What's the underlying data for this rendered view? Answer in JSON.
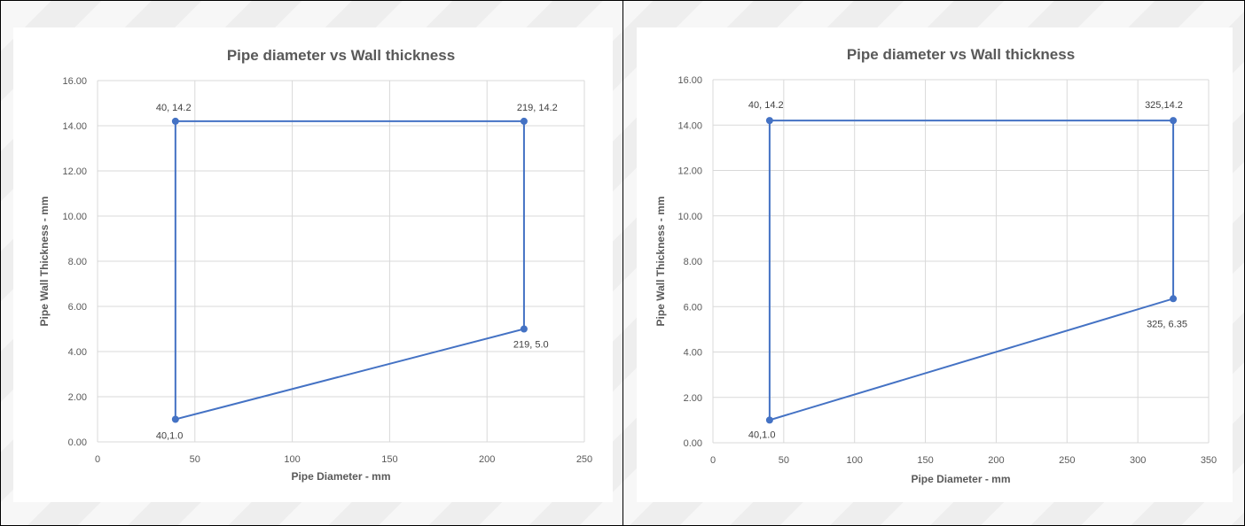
{
  "chart_data": [
    {
      "type": "scatter",
      "title": "Pipe diameter vs Wall thickness",
      "xlabel": "Pipe Diameter - mm",
      "ylabel": "Pipe Wall Thickness - mm",
      "xlim": [
        0,
        250
      ],
      "ylim": [
        0,
        16
      ],
      "x_ticks": [
        "0",
        "50",
        "100",
        "150",
        "200",
        "250"
      ],
      "y_ticks": [
        "0.00",
        "2.00",
        "4.00",
        "6.00",
        "8.00",
        "10.00",
        "12.00",
        "14.00",
        "16.00"
      ],
      "grid": true,
      "series_color": "#4472c4",
      "points": [
        {
          "x": 40,
          "y": 14.2,
          "label": "40, 14.2"
        },
        {
          "x": 219,
          "y": 14.2,
          "label": "219, 14.2"
        },
        {
          "x": 219,
          "y": 5.0,
          "label": "219, 5.0"
        },
        {
          "x": 40,
          "y": 1.0,
          "label": "40,1.0"
        }
      ]
    },
    {
      "type": "scatter",
      "title": "Pipe diameter vs Wall thickness",
      "xlabel": "Pipe Diameter - mm",
      "ylabel": "Pipe Wall Thickness - mm",
      "xlim": [
        0,
        350
      ],
      "ylim": [
        0,
        16
      ],
      "x_ticks": [
        "0",
        "50",
        "100",
        "150",
        "200",
        "250",
        "300",
        "350"
      ],
      "y_ticks": [
        "0.00",
        "2.00",
        "4.00",
        "6.00",
        "8.00",
        "10.00",
        "12.00",
        "14.00",
        "16.00"
      ],
      "grid": true,
      "series_color": "#4472c4",
      "points": [
        {
          "x": 40,
          "y": 14.2,
          "label": "40, 14.2"
        },
        {
          "x": 325,
          "y": 14.2,
          "label": "325,14.2"
        },
        {
          "x": 325,
          "y": 6.35,
          "label": "325, 6.35"
        },
        {
          "x": 40,
          "y": 1.0,
          "label": "40,1.0"
        }
      ]
    }
  ]
}
